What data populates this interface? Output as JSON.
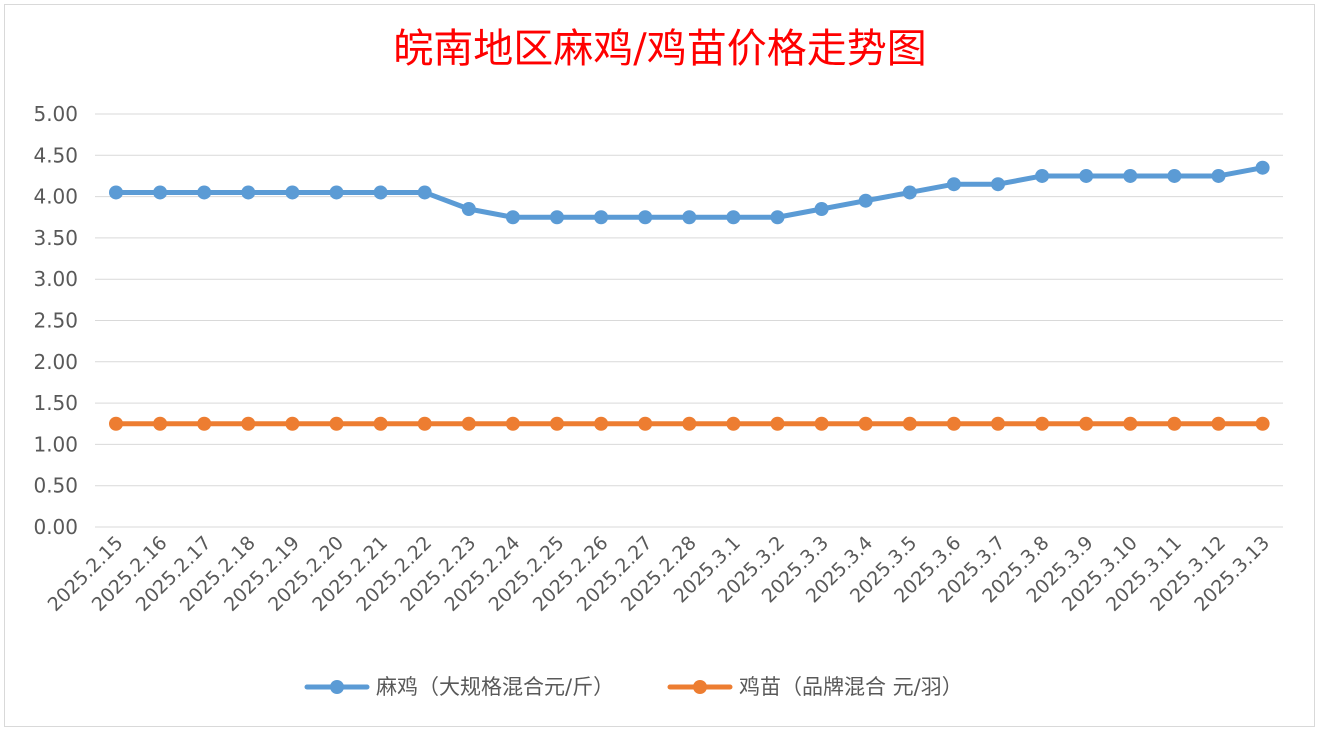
{
  "chart_data": {
    "type": "line",
    "title": "皖南地区麻鸡/鸡苗价格走势图",
    "categories": [
      "2025.2.15",
      "2025.2.16",
      "2025.2.17",
      "2025.2.18",
      "2025.2.19",
      "2025.2.20",
      "2025.2.21",
      "2025.2.22",
      "2025.2.23",
      "2025.2.24",
      "2025.2.25",
      "2025.2.26",
      "2025.2.27",
      "2025.2.28",
      "2025.3.1",
      "2025.3.2",
      "2025.3.3",
      "2025.3.4",
      "2025.3.5",
      "2025.3.6",
      "2025.3.7",
      "2025.3.8",
      "2025.3.9",
      "2025.3.10",
      "2025.3.11",
      "2025.3.12",
      "2025.3.13"
    ],
    "series": [
      {
        "name": "麻鸡（大规格混合元/斤）",
        "color": "#5b9bd5",
        "values": [
          4.05,
          4.05,
          4.05,
          4.05,
          4.05,
          4.05,
          4.05,
          4.05,
          3.85,
          3.75,
          3.75,
          3.75,
          3.75,
          3.75,
          3.75,
          3.75,
          3.85,
          3.95,
          4.05,
          4.15,
          4.15,
          4.25,
          4.25,
          4.25,
          4.25,
          4.25,
          4.35
        ]
      },
      {
        "name": "鸡苗（品牌混合 元/羽）",
        "color": "#ed7d31",
        "values": [
          1.25,
          1.25,
          1.25,
          1.25,
          1.25,
          1.25,
          1.25,
          1.25,
          1.25,
          1.25,
          1.25,
          1.25,
          1.25,
          1.25,
          1.25,
          1.25,
          1.25,
          1.25,
          1.25,
          1.25,
          1.25,
          1.25,
          1.25,
          1.25,
          1.25,
          1.25,
          1.25
        ]
      }
    ],
    "yticks": [
      "0.00",
      "0.50",
      "1.00",
      "1.50",
      "2.00",
      "2.50",
      "3.00",
      "3.50",
      "4.00",
      "4.50",
      "5.00"
    ],
    "ylim": [
      0,
      5
    ],
    "grid": true,
    "legend_position": "bottom"
  }
}
